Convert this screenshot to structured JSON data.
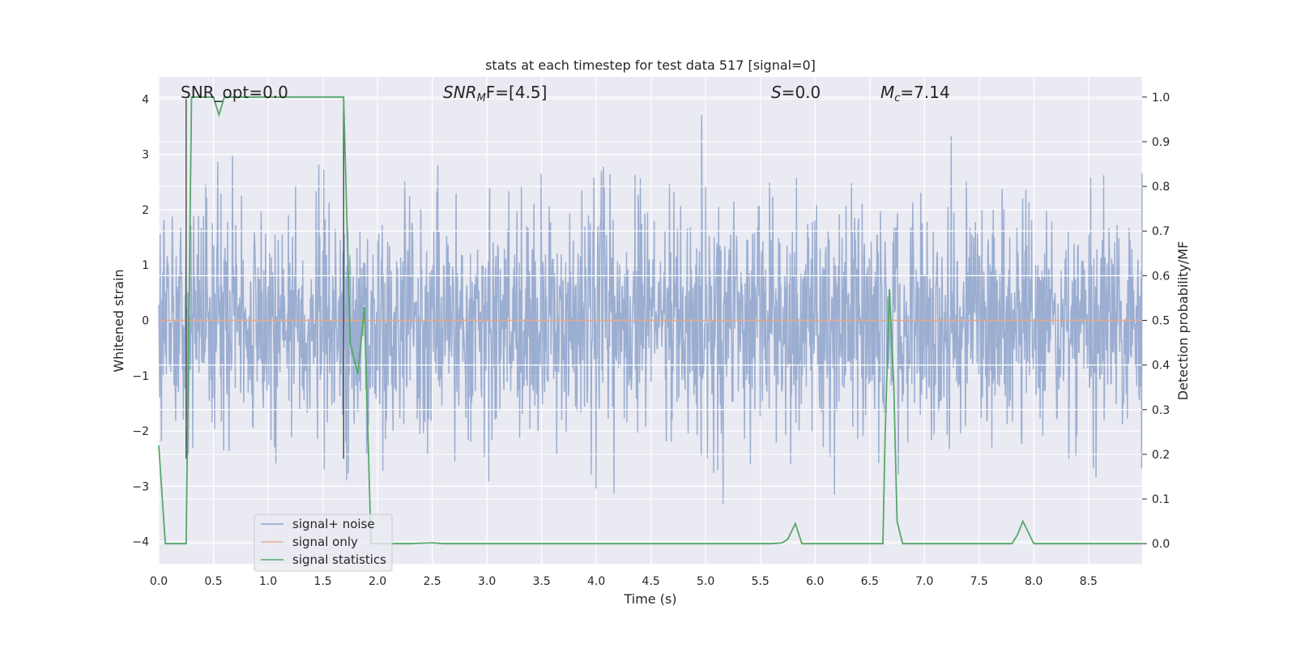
{
  "chart_data": {
    "type": "line",
    "title": "stats at each timestep for test data 517 [signal=0]",
    "xlabel": "Time (s)",
    "ylabel_left": "Whitened strain",
    "ylabel_right": "Detection probability/MF",
    "xlim": [
      0.0,
      8.99
    ],
    "ylim_left": [
      -4.4,
      4.4
    ],
    "ylim_right": [
      -0.045,
      1.045
    ],
    "xticks": [
      "0.0",
      "0.5",
      "1.0",
      "1.5",
      "2.0",
      "2.5",
      "3.0",
      "3.5",
      "4.0",
      "4.5",
      "5.0",
      "5.5",
      "6.0",
      "6.5",
      "7.0",
      "7.5",
      "8.0",
      "8.5"
    ],
    "xtick_values": [
      0.0,
      0.5,
      1.0,
      1.5,
      2.0,
      2.5,
      3.0,
      3.5,
      4.0,
      4.5,
      5.0,
      5.5,
      6.0,
      6.5,
      7.0,
      7.5,
      8.0,
      8.5
    ],
    "yticks_left": [
      "4",
      "3",
      "2",
      "1",
      "0",
      "−1",
      "−2",
      "−3",
      "−4"
    ],
    "ytick_left_values": [
      4,
      3,
      2,
      1,
      0,
      -1,
      -2,
      -3,
      -4
    ],
    "yticks_right": [
      "1.0",
      "0.9",
      "0.8",
      "0.7",
      "0.6",
      "0.5",
      "0.4",
      "0.3",
      "0.2",
      "0.1",
      "0.0"
    ],
    "ytick_right_values": [
      1.0,
      0.9,
      0.8,
      0.7,
      0.6,
      0.5,
      0.4,
      0.3,
      0.2,
      0.1,
      0.0
    ],
    "grid": true,
    "legend_position": "lower-left",
    "colors": {
      "noise": "#4c72b0",
      "signal": "#dd8452",
      "stats": "#55a868",
      "vline": "#555555",
      "bg": "#eaeaf2"
    },
    "annotations": {
      "snr_opt": "SNR_opt=0.0",
      "snr_mf_main": "SNR",
      "snr_mf_sub": "M",
      "snr_mf_rest": "F=[4.5]",
      "s_main": "S",
      "s_rest": "=0.0",
      "mc_main": "M",
      "mc_sub": "c",
      "mc_rest": "=7.14"
    },
    "vertical_lines_x": [
      0.25,
      1.69
    ],
    "series": [
      {
        "name": "signal+ noise",
        "kind": "noise",
        "approx_std": 1.0,
        "approx_range": [
          -4.0,
          4.0
        ]
      },
      {
        "name": "signal only",
        "kind": "flat",
        "value": 0.0
      },
      {
        "name": "signal statistics",
        "axis": "right",
        "x": [
          0.0,
          0.06,
          0.12,
          0.18,
          0.24,
          0.25,
          0.3,
          0.36,
          0.42,
          0.48,
          0.5,
          0.55,
          0.6,
          0.66,
          0.72,
          0.78,
          0.84,
          0.9,
          0.96,
          1.0,
          1.1,
          1.2,
          1.3,
          1.4,
          1.5,
          1.6,
          1.69,
          1.75,
          1.82,
          1.88,
          1.94,
          1.97,
          2.0,
          2.05,
          2.1,
          2.2,
          2.3,
          2.5,
          2.6,
          2.8,
          3.0,
          3.5,
          4.0,
          4.5,
          5.0,
          5.5,
          5.6,
          5.7,
          5.75,
          5.82,
          5.88,
          5.95,
          6.0,
          6.5,
          6.62,
          6.64,
          6.68,
          6.72,
          6.75,
          6.8,
          6.85,
          6.9,
          7.0,
          7.5,
          7.8,
          7.85,
          7.9,
          7.95,
          8.0,
          8.5,
          8.99
        ],
        "values": [
          0.22,
          0.0,
          0.0,
          0.0,
          0.0,
          0.0,
          1.0,
          1.0,
          1.0,
          1.0,
          1.0,
          0.96,
          1.0,
          1.0,
          1.0,
          1.0,
          1.0,
          1.0,
          1.0,
          1.0,
          1.0,
          1.0,
          1.0,
          1.0,
          1.0,
          1.0,
          1.0,
          0.45,
          0.38,
          0.53,
          0.0,
          0.0,
          0.0,
          0.0,
          0.0,
          0.0,
          0.0,
          0.002,
          0.0,
          0.0,
          0.0,
          0.0,
          0.0,
          0.0,
          0.0,
          0.0,
          0.0,
          0.002,
          0.01,
          0.045,
          0.0,
          0.0,
          0.0,
          0.0,
          0.0,
          0.24,
          0.57,
          0.35,
          0.05,
          0.0,
          0.0,
          0.0,
          0.0,
          0.0,
          0.0,
          0.02,
          0.05,
          0.025,
          0.0,
          0.0,
          0.0
        ]
      }
    ]
  }
}
